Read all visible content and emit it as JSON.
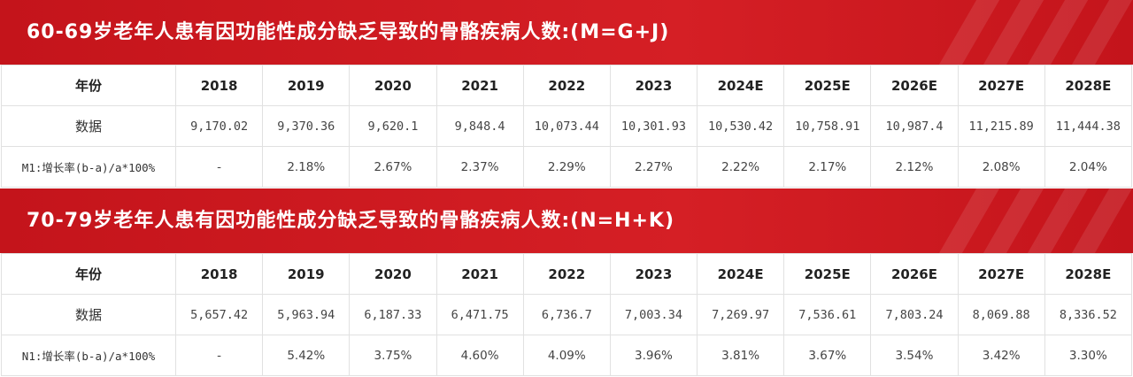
{
  "sections": [
    {
      "title": "60-69岁老年人患有因功能性成分缺乏导致的骨骼疾病人数:(M=G+J)",
      "header_label": "年份",
      "years": [
        "2018",
        "2019",
        "2020",
        "2021",
        "2022",
        "2023",
        "2024E",
        "2025E",
        "2026E",
        "2027E",
        "2028E"
      ],
      "data_label": "数据",
      "values": [
        "9,170.02",
        "9,370.36",
        "9,620.1",
        "9,848.4",
        "10,073.44",
        "10,301.93",
        "10,530.42",
        "10,758.91",
        "10,987.4",
        "11,215.89",
        "11,444.38"
      ],
      "rate_label": "M1:增长率(b-a)/a*100%",
      "rates": [
        "-",
        "2.18%",
        "2.67%",
        "2.37%",
        "2.29%",
        "2.27%",
        "2.22%",
        "2.17%",
        "2.12%",
        "2.08%",
        "2.04%"
      ]
    },
    {
      "title": "70-79岁老年人患有因功能性成分缺乏导致的骨骼疾病人数:(N=H+K)",
      "header_label": "年份",
      "years": [
        "2018",
        "2019",
        "2020",
        "2021",
        "2022",
        "2023",
        "2024E",
        "2025E",
        "2026E",
        "2027E",
        "2028E"
      ],
      "data_label": "数据",
      "values": [
        "5,657.42",
        "5,963.94",
        "6,187.33",
        "6,471.75",
        "6,736.7",
        "7,003.34",
        "7,269.97",
        "7,536.61",
        "7,803.24",
        "8,069.88",
        "8,336.52"
      ],
      "rate_label": "N1:增长率(b-a)/a*100%",
      "rates": [
        "-",
        "5.42%",
        "3.75%",
        "4.60%",
        "4.09%",
        "3.96%",
        "3.81%",
        "3.67%",
        "3.54%",
        "3.42%",
        "3.30%"
      ]
    }
  ],
  "colors": {
    "banner": "#c8161d",
    "title_text": "#ffffff",
    "grid": "#e1e1e1"
  }
}
